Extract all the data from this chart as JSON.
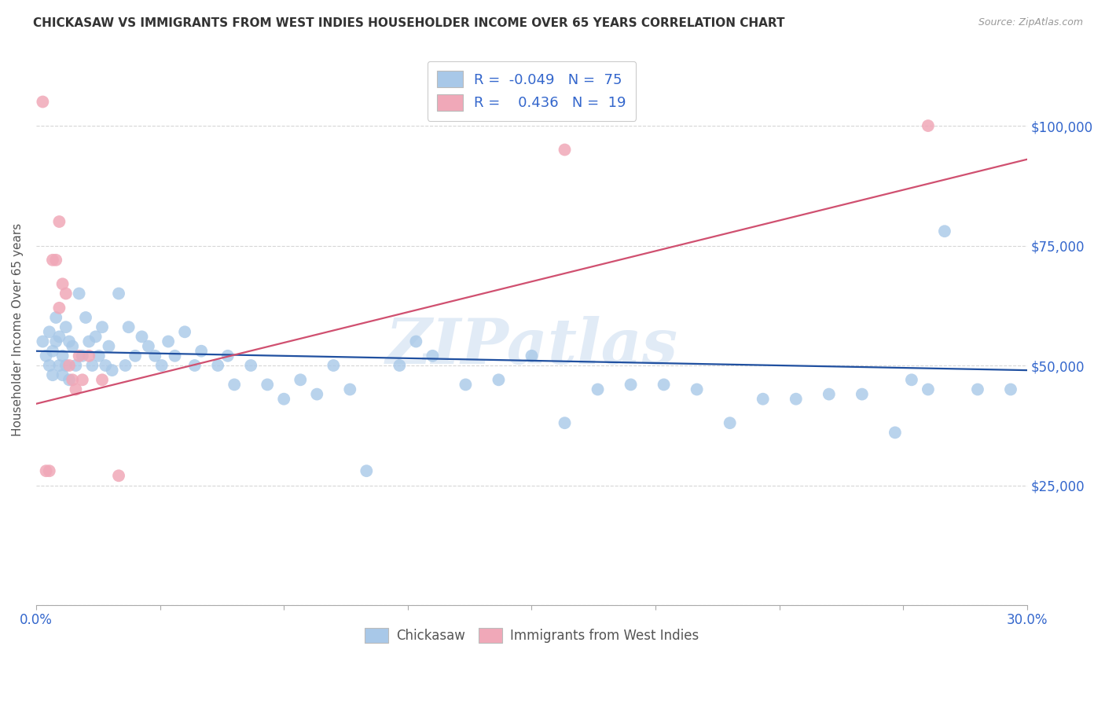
{
  "title": "CHICKASAW VS IMMIGRANTS FROM WEST INDIES HOUSEHOLDER INCOME OVER 65 YEARS CORRELATION CHART",
  "source": "Source: ZipAtlas.com",
  "ylabel": "Householder Income Over 65 years",
  "xmin": 0.0,
  "xmax": 0.3,
  "ymin": 0,
  "ymax": 115000,
  "yticks": [
    0,
    25000,
    50000,
    75000,
    100000
  ],
  "ytick_labels_right": [
    "",
    "$25,000",
    "$50,000",
    "$75,000",
    "$100,000"
  ],
  "watermark": "ZIPatlas",
  "blue_color": "#A8C8E8",
  "pink_color": "#F0A8B8",
  "blue_line_color": "#2050A0",
  "pink_line_color": "#D05070",
  "label_blue": "Chickasaw",
  "label_pink": "Immigrants from West Indies",
  "blue_x": [
    0.002,
    0.003,
    0.004,
    0.004,
    0.005,
    0.005,
    0.006,
    0.006,
    0.007,
    0.007,
    0.008,
    0.008,
    0.009,
    0.009,
    0.01,
    0.01,
    0.011,
    0.012,
    0.013,
    0.014,
    0.015,
    0.016,
    0.017,
    0.018,
    0.019,
    0.02,
    0.021,
    0.022,
    0.023,
    0.025,
    0.027,
    0.028,
    0.03,
    0.032,
    0.034,
    0.036,
    0.038,
    0.04,
    0.042,
    0.045,
    0.048,
    0.05,
    0.055,
    0.058,
    0.06,
    0.065,
    0.07,
    0.075,
    0.08,
    0.085,
    0.09,
    0.095,
    0.1,
    0.11,
    0.115,
    0.12,
    0.13,
    0.14,
    0.15,
    0.16,
    0.17,
    0.18,
    0.19,
    0.2,
    0.21,
    0.22,
    0.23,
    0.24,
    0.25,
    0.26,
    0.265,
    0.27,
    0.275,
    0.285,
    0.295
  ],
  "blue_y": [
    55000,
    52000,
    50000,
    57000,
    53000,
    48000,
    55000,
    60000,
    50000,
    56000,
    52000,
    48000,
    58000,
    50000,
    55000,
    47000,
    54000,
    50000,
    65000,
    52000,
    60000,
    55000,
    50000,
    56000,
    52000,
    58000,
    50000,
    54000,
    49000,
    65000,
    50000,
    58000,
    52000,
    56000,
    54000,
    52000,
    50000,
    55000,
    52000,
    57000,
    50000,
    53000,
    50000,
    52000,
    46000,
    50000,
    46000,
    43000,
    47000,
    44000,
    50000,
    45000,
    28000,
    50000,
    55000,
    52000,
    46000,
    47000,
    52000,
    38000,
    45000,
    46000,
    46000,
    45000,
    38000,
    43000,
    43000,
    44000,
    44000,
    36000,
    47000,
    45000,
    78000,
    45000,
    45000
  ],
  "pink_x": [
    0.002,
    0.003,
    0.004,
    0.005,
    0.006,
    0.007,
    0.007,
    0.008,
    0.009,
    0.01,
    0.011,
    0.012,
    0.013,
    0.014,
    0.016,
    0.02,
    0.025,
    0.16,
    0.27
  ],
  "pink_y": [
    105000,
    28000,
    28000,
    72000,
    72000,
    62000,
    80000,
    67000,
    65000,
    50000,
    47000,
    45000,
    52000,
    47000,
    52000,
    47000,
    27000,
    95000,
    100000
  ],
  "blue_line_x0": 0.0,
  "blue_line_x1": 0.3,
  "blue_line_y0": 53000,
  "blue_line_y1": 49000,
  "pink_line_x0": 0.0,
  "pink_line_x1": 0.3,
  "pink_line_y0": 42000,
  "pink_line_y1": 93000
}
